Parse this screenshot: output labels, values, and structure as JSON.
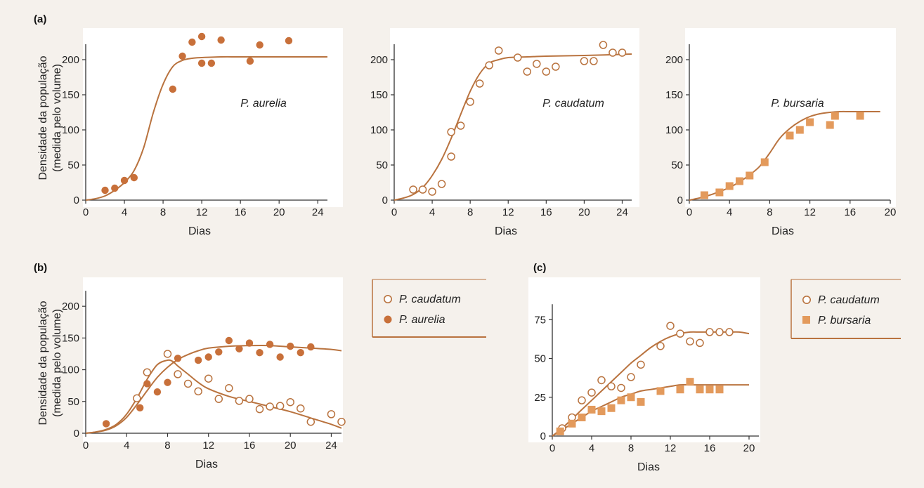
{
  "colors": {
    "curve": "#b9733f",
    "filled": "#c8703a",
    "square": "#e39a5c",
    "open_stroke": "#b9733f",
    "legend_border": "#b9733f"
  },
  "panels": {
    "a": {
      "label": "(a)"
    },
    "b": {
      "label": "(b)"
    },
    "c": {
      "label": "(c)"
    }
  },
  "ylabel": {
    "line1": "Densidade da população",
    "line2": "(medida pelo volume)"
  },
  "legend_b": {
    "items": [
      {
        "label": "P. caudatum",
        "marker": "open-circle"
      },
      {
        "label": "P. aurelia",
        "marker": "filled-circle"
      }
    ]
  },
  "legend_c": {
    "items": [
      {
        "label": "P. caudatum",
        "marker": "open-circle"
      },
      {
        "label": "P. bursaria",
        "marker": "filled-square"
      }
    ]
  },
  "chart_data": [
    {
      "id": "a1",
      "type": "scatter",
      "annotation": "P. aurelia",
      "xlabel": "Dias",
      "ylabel": "Densidade da população (medida pelo volume)",
      "xlim": [
        0,
        25
      ],
      "ylim": [
        0,
        240
      ],
      "xticks": [
        0,
        4,
        8,
        12,
        16,
        20,
        24
      ],
      "yticks": [
        0,
        50,
        100,
        150,
        200
      ],
      "series": [
        {
          "name": "P. aurelia",
          "marker": "filled-circle",
          "x": [
            2,
            3,
            4,
            5,
            9,
            10,
            11,
            12,
            12,
            13,
            14,
            17,
            18,
            21
          ],
          "y": [
            14,
            17,
            28,
            32,
            158,
            205,
            225,
            233,
            195,
            195,
            228,
            198,
            221,
            227
          ]
        }
      ],
      "fit_curve": {
        "x": [
          0,
          1,
          2,
          3,
          4,
          5,
          6,
          7,
          8,
          9,
          10,
          11,
          12,
          14,
          16,
          20,
          25
        ],
        "y": [
          0,
          2,
          6,
          14,
          25,
          42,
          75,
          125,
          165,
          190,
          199,
          202,
          203,
          204,
          204,
          204,
          204
        ]
      }
    },
    {
      "id": "a2",
      "type": "scatter",
      "annotation": "P. caudatum",
      "xlabel": "Dias",
      "ylabel": "",
      "xlim": [
        0,
        25
      ],
      "ylim": [
        0,
        240
      ],
      "xticks": [
        0,
        4,
        8,
        12,
        16,
        20,
        24
      ],
      "yticks": [
        0,
        50,
        100,
        150,
        200
      ],
      "series": [
        {
          "name": "P. caudatum",
          "marker": "open-circle",
          "x": [
            2,
            3,
            4,
            5,
            6,
            6,
            7,
            8,
            9,
            10,
            11,
            13,
            14,
            15,
            16,
            17,
            20,
            21,
            22,
            23,
            24
          ],
          "y": [
            15,
            15,
            12,
            23,
            62,
            97,
            106,
            140,
            166,
            192,
            213,
            203,
            183,
            194,
            183,
            190,
            198,
            198,
            221,
            210,
            210
          ]
        }
      ],
      "fit_curve": {
        "x": [
          0,
          1,
          2,
          3,
          4,
          5,
          6,
          7,
          8,
          9,
          10,
          11,
          12,
          14,
          16,
          20,
          25
        ],
        "y": [
          0,
          3,
          8,
          18,
          35,
          58,
          88,
          122,
          155,
          180,
          195,
          200,
          203,
          204,
          205,
          206,
          208
        ]
      }
    },
    {
      "id": "a3",
      "type": "scatter",
      "annotation": "P. bursaria",
      "xlabel": "Dias",
      "ylabel": "",
      "xlim": [
        0,
        20
      ],
      "ylim": [
        0,
        240
      ],
      "xticks": [
        0,
        4,
        8,
        12,
        16,
        20
      ],
      "yticks": [
        0,
        50,
        100,
        150,
        200
      ],
      "series": [
        {
          "name": "P. bursaria",
          "marker": "filled-square",
          "x": [
            1.5,
            3,
            4,
            5,
            6,
            7.5,
            10,
            11,
            12,
            14,
            14.5,
            17
          ],
          "y": [
            7,
            11,
            20,
            27,
            35,
            54,
            92,
            100,
            111,
            107,
            120,
            120
          ]
        }
      ],
      "fit_curve": {
        "x": [
          0,
          1,
          2,
          3,
          4,
          5,
          6,
          7,
          8,
          9,
          10,
          11,
          12,
          13,
          14,
          15,
          16,
          17,
          18,
          19
        ],
        "y": [
          0,
          3,
          7,
          12,
          18,
          26,
          36,
          48,
          67,
          88,
          102,
          112,
          119,
          123,
          125,
          126,
          126,
          126,
          126,
          126
        ]
      }
    },
    {
      "id": "b",
      "type": "scatter",
      "xlabel": "Dias",
      "ylabel": "Densidade da população (medida pelo volume)",
      "xlim": [
        0,
        25
      ],
      "ylim": [
        0,
        240
      ],
      "xticks": [
        0,
        4,
        8,
        12,
        16,
        20,
        24
      ],
      "yticks": [
        0,
        50,
        100,
        150,
        200
      ],
      "series": [
        {
          "name": "P. caudatum",
          "marker": "open-circle",
          "x": [
            5,
            6,
            8,
            9,
            10,
            11,
            12,
            13,
            14,
            15,
            16,
            17,
            18,
            19,
            20,
            21,
            22,
            24,
            25
          ],
          "y": [
            55,
            96,
            125,
            93,
            78,
            66,
            86,
            54,
            71,
            51,
            54,
            38,
            42,
            43,
            49,
            39,
            18,
            30,
            18
          ]
        },
        {
          "name": "P. aurelia",
          "marker": "filled-circle",
          "x": [
            2,
            5.3,
            6,
            7,
            8,
            9,
            11,
            12,
            13,
            14,
            15,
            16,
            17,
            18,
            19,
            20,
            21,
            22
          ],
          "y": [
            15,
            40,
            78,
            65,
            80,
            118,
            115,
            120,
            128,
            146,
            133,
            142,
            127,
            140,
            120,
            137,
            127,
            136
          ]
        }
      ],
      "fit_curves": [
        {
          "name": "P. caudatum",
          "x": [
            0,
            1,
            2,
            3,
            4,
            5,
            6,
            7,
            8,
            8.5,
            9,
            10,
            11,
            12,
            14,
            16,
            18,
            20,
            22,
            24,
            25
          ],
          "y": [
            0,
            2,
            6,
            14,
            30,
            55,
            85,
            108,
            115,
            113,
            106,
            93,
            80,
            70,
            58,
            50,
            42,
            34,
            24,
            14,
            8
          ]
        },
        {
          "name": "P. aurelia",
          "x": [
            0,
            1,
            2,
            3,
            4,
            5,
            6,
            7,
            8,
            9,
            10,
            11,
            12,
            14,
            16,
            18,
            20,
            22,
            24,
            25
          ],
          "y": [
            0,
            2,
            5,
            12,
            25,
            45,
            67,
            88,
            104,
            116,
            124,
            130,
            134,
            137,
            138,
            138,
            136,
            134,
            132,
            130
          ]
        }
      ]
    },
    {
      "id": "c",
      "type": "scatter",
      "xlabel": "Dias",
      "ylabel": "",
      "xlim": [
        0,
        21
      ],
      "ylim": [
        0,
        100
      ],
      "xticks": [
        0,
        4,
        8,
        12,
        16,
        20
      ],
      "yticks": [
        0,
        25,
        50,
        75
      ],
      "series": [
        {
          "name": "P. caudatum",
          "marker": "open-circle",
          "x": [
            1,
            2,
            3,
            4,
            5,
            6,
            7,
            8,
            9,
            11,
            12,
            13,
            14,
            15,
            16,
            17,
            18
          ],
          "y": [
            5,
            12,
            23,
            28,
            36,
            32,
            31,
            38,
            46,
            58,
            71,
            66,
            61,
            60,
            67,
            67,
            67
          ]
        },
        {
          "name": "P. bursaria",
          "marker": "filled-square",
          "x": [
            0.8,
            2,
            3,
            4,
            5,
            6,
            7,
            8,
            9,
            11,
            13,
            14,
            15,
            16,
            17
          ],
          "y": [
            3,
            8,
            12,
            17,
            16,
            18,
            23,
            25,
            22,
            29,
            30,
            35,
            30,
            30,
            30
          ]
        }
      ],
      "fit_curves": [
        {
          "name": "P. caudatum",
          "x": [
            0,
            1,
            2,
            3,
            4,
            5,
            6,
            7,
            8,
            9,
            10,
            11,
            12,
            13,
            14,
            15,
            16,
            17,
            18,
            19,
            20
          ],
          "y": [
            0,
            5,
            11,
            17,
            23,
            29,
            35,
            41,
            47,
            52,
            57,
            61,
            64,
            66,
            67,
            67,
            67,
            67,
            67,
            67,
            66
          ]
        },
        {
          "name": "P. bursaria",
          "x": [
            0,
            1,
            2,
            3,
            4,
            5,
            6,
            7,
            8,
            9,
            10,
            11,
            12,
            13,
            14,
            15,
            16,
            17,
            18,
            19,
            20
          ],
          "y": [
            0,
            4,
            8,
            12,
            16,
            19,
            22,
            25,
            27,
            29,
            30,
            31,
            32,
            33,
            33,
            33,
            33,
            33,
            33,
            33,
            33
          ]
        }
      ]
    }
  ],
  "xlabel_text": "Dias"
}
